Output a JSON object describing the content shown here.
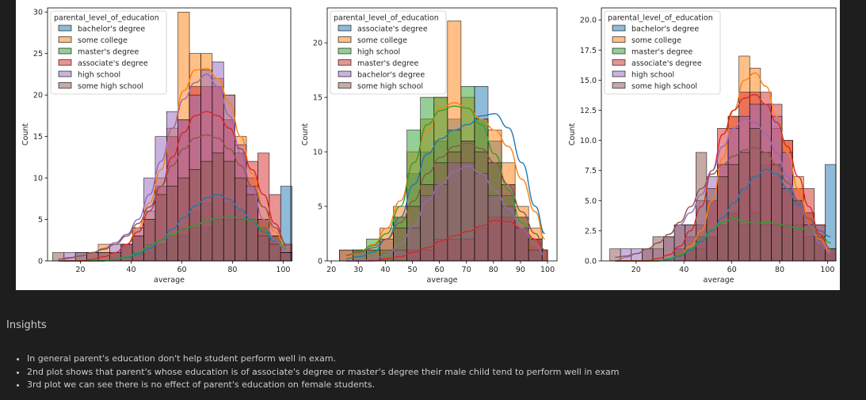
{
  "insights": {
    "heading": "Insights",
    "bullets": [
      "In general parent's education don't help student perform well in exam.",
      "2nd plot shows that parent's whose education is of associate's degree or master's degree their male child tend to perform well in exam",
      "3rd plot we can see there is no effect of parent's education on female students."
    ]
  },
  "colors": {
    "blue": "#1f77b4",
    "orange": "#ff7f0e",
    "green": "#2ca02c",
    "red": "#d62728",
    "purple": "#9467bd",
    "brown": "#8c564b"
  },
  "chart_data": [
    {
      "type": "histogram",
      "title": "",
      "xlabel": "average",
      "ylabel": "Count",
      "xlim": [
        7,
        103
      ],
      "ylim": [
        0,
        30.5
      ],
      "xticks": [
        20,
        40,
        60,
        80,
        100
      ],
      "yticks": [
        0,
        5,
        10,
        15,
        20,
        25,
        30
      ],
      "ytick_labels": [
        "0",
        "5",
        "10",
        "15",
        "20",
        "25",
        "30"
      ],
      "legend_title": "parental_level_of_education",
      "legend_position": "top-left",
      "bin_edges": [
        9,
        13.5,
        18,
        22.5,
        27,
        31.5,
        36,
        40.5,
        45,
        49.5,
        54,
        58.5,
        63,
        67.5,
        72,
        76.5,
        81,
        85.5,
        90,
        94.5,
        99,
        103.5
      ],
      "series": [
        {
          "name": "bachelor's degree",
          "color": "blue",
          "counts": [
            0,
            0,
            0,
            0,
            0,
            0,
            0,
            0,
            1,
            2,
            3,
            4,
            6,
            7,
            8,
            7,
            6,
            5,
            4,
            3,
            9
          ],
          "kde": [
            0,
            0,
            0,
            0,
            0,
            0.2,
            0.4,
            0.8,
            1.5,
            2.5,
            3.8,
            5.2,
            6.6,
            7.6,
            8.0,
            7.4,
            6.2,
            4.8,
            3.5,
            2.4,
            1.8
          ]
        },
        {
          "name": "some college",
          "color": "orange",
          "counts": [
            0,
            0,
            0,
            1,
            2,
            1,
            2,
            4,
            6,
            10,
            16,
            30,
            25,
            25,
            22,
            20,
            15,
            10,
            5,
            3,
            1
          ],
          "kde": [
            0,
            0,
            0,
            0.2,
            0.5,
            1,
            2,
            4,
            7,
            11,
            16,
            20.5,
            23,
            23.2,
            22,
            19,
            15,
            10.5,
            6.5,
            3.5,
            1.5
          ]
        },
        {
          "name": "master's degree",
          "color": "green",
          "counts": [
            0,
            0,
            0,
            0,
            0,
            0,
            0,
            1,
            2,
            2,
            3,
            3,
            4,
            4,
            5,
            5,
            5,
            5,
            3,
            2,
            1
          ],
          "kde": [
            0,
            0,
            0,
            0,
            0,
            0.2,
            0.5,
            1,
            1.8,
            2.5,
            3.2,
            3.8,
            4.3,
            4.8,
            5.2,
            5.3,
            5.2,
            4.8,
            3.8,
            2.6,
            1.5
          ]
        },
        {
          "name": "associate's degree",
          "color": "red",
          "counts": [
            0,
            0,
            0,
            0,
            0,
            1,
            2,
            3,
            5,
            9,
            15,
            17,
            21,
            21,
            21,
            17,
            13,
            12,
            13,
            8,
            2
          ],
          "kde": [
            0,
            0,
            0,
            0.2,
            0.5,
            1,
            2,
            3.5,
            6,
            9,
            12.5,
            15.5,
            17.5,
            18,
            17.5,
            16,
            13.5,
            11,
            8,
            4.5,
            2
          ]
        },
        {
          "name": "high school",
          "color": "purple",
          "counts": [
            0,
            1,
            1,
            1,
            1,
            2,
            2,
            4,
            10,
            15,
            18,
            17,
            20,
            23,
            24,
            20,
            14,
            9,
            3,
            2,
            1
          ],
          "kde": [
            0,
            0.3,
            0.6,
            1,
            1.5,
            2.2,
            3.2,
            5,
            8,
            12,
            16,
            19.5,
            21.5,
            22.5,
            21,
            17.5,
            13,
            8.5,
            5,
            2.5,
            1.2
          ]
        },
        {
          "name": "some high school",
          "color": "brown",
          "counts": [
            1,
            0,
            1,
            1,
            1,
            1,
            2,
            3,
            5,
            8,
            9,
            10,
            11,
            12,
            13,
            12,
            10,
            8,
            5,
            3,
            1
          ],
          "kde": [
            0.2,
            0.4,
            0.6,
            1,
            1.4,
            2,
            3,
            4.5,
            6.5,
            9,
            11.5,
            13.5,
            14.8,
            15.2,
            14.8,
            13.5,
            11.5,
            9,
            6.5,
            4,
            2
          ]
        }
      ]
    },
    {
      "type": "histogram",
      "title": "",
      "xlabel": "average",
      "ylabel": "Count",
      "xlim": [
        18.5,
        103.5
      ],
      "ylim": [
        0,
        23.2
      ],
      "xticks": [
        20,
        30,
        40,
        50,
        60,
        70,
        80,
        90,
        100
      ],
      "yticks": [
        0,
        5,
        10,
        15,
        20
      ],
      "ytick_labels": [
        "0",
        "5",
        "10",
        "15",
        "20"
      ],
      "legend_title": "parental_level_of_education",
      "legend_position": "top-left",
      "bin_edges": [
        23,
        28,
        33,
        38,
        43,
        48,
        53,
        58,
        63,
        68,
        73,
        78,
        83,
        88,
        93,
        98,
        100
      ],
      "series": [
        {
          "name": "associate's degree",
          "color": "blue",
          "counts": [
            0,
            0,
            0,
            1,
            4,
            8,
            10,
            11,
            13,
            11,
            16,
            11,
            7,
            4,
            2,
            1
          ],
          "kde": [
            0.2,
            0.4,
            0.8,
            2,
            4,
            7,
            9.8,
            11.2,
            12,
            12.5,
            13.3,
            13.5,
            12.2,
            9,
            5,
            2.5
          ]
        },
        {
          "name": "some college",
          "color": "orange",
          "counts": [
            1,
            1,
            1,
            3,
            5,
            10,
            13,
            15,
            22,
            15,
            13,
            12,
            9,
            5,
            3,
            1
          ],
          "kde": [
            0.4,
            0.8,
            1.5,
            3,
            5.5,
            9,
            12,
            14,
            14.5,
            14,
            13,
            12,
            10.5,
            7.5,
            4.5,
            2
          ]
        },
        {
          "name": "high school",
          "color": "green",
          "counts": [
            0,
            1,
            2,
            1,
            4,
            12,
            15,
            15,
            12,
            16,
            13,
            9,
            6,
            3,
            1,
            0
          ],
          "kde": [
            0.5,
            0.9,
            1.4,
            2.5,
            5,
            9,
            12.5,
            13.8,
            14.2,
            14,
            12.5,
            9.8,
            6.5,
            3.5,
            1.5,
            0.5
          ]
        },
        {
          "name": "master's degree",
          "color": "red",
          "counts": [
            0,
            0,
            0,
            0,
            0,
            1,
            1,
            2,
            2,
            2,
            3,
            4,
            4,
            3,
            2,
            1
          ],
          "kde": [
            0,
            0,
            0,
            0.2,
            0.4,
            0.8,
            1.2,
            1.8,
            2.3,
            2.7,
            3.2,
            3.7,
            3.6,
            3,
            2,
            1
          ]
        },
        {
          "name": "bachelor's degree",
          "color": "purple",
          "counts": [
            0,
            0,
            0,
            0,
            1,
            3,
            6,
            7,
            9,
            9,
            8,
            6,
            5,
            3,
            1,
            0
          ],
          "kde": [
            0,
            0,
            0.2,
            0.5,
            1.5,
            3.2,
            5.5,
            7,
            8.2,
            8.7,
            8,
            6.5,
            4.8,
            3,
            1.5,
            0.5
          ]
        },
        {
          "name": "some high school",
          "color": "brown",
          "counts": [
            1,
            1,
            1,
            2,
            3,
            5,
            7,
            9,
            10,
            11,
            10,
            9,
            7,
            4,
            2,
            1
          ],
          "kde": [
            0.5,
            0.8,
            1.2,
            2,
            3.5,
            5.5,
            8,
            9.5,
            10.5,
            10.8,
            10.3,
            9,
            7,
            4.5,
            2.5,
            1
          ]
        }
      ]
    },
    {
      "type": "histogram",
      "title": "",
      "xlabel": "average",
      "ylabel": "Count",
      "xlim": [
        5.5,
        103.5
      ],
      "ylim": [
        0,
        21
      ],
      "xticks": [
        20,
        40,
        60,
        80,
        100
      ],
      "yticks": [
        0,
        2.5,
        5,
        7.5,
        10,
        12.5,
        15,
        17.5,
        20
      ],
      "ytick_labels": [
        "0.0",
        "2.5",
        "5.0",
        "7.5",
        "10.0",
        "12.5",
        "15.0",
        "17.5",
        "20.0"
      ],
      "legend_title": "parental_level_of_education",
      "legend_position": "top-left",
      "bin_edges": [
        9,
        13.5,
        18,
        22.5,
        27,
        31.5,
        36,
        40.5,
        45,
        49.5,
        54,
        58.5,
        63,
        67.5,
        72,
        76.5,
        81,
        85.5,
        90,
        94.5,
        99,
        103.5
      ],
      "series": [
        {
          "name": "bachelor's degree",
          "color": "blue",
          "counts": [
            0,
            0,
            0,
            0,
            0,
            0,
            0,
            1,
            2,
            2,
            3,
            4,
            6,
            7,
            8,
            7,
            6,
            5,
            4,
            3,
            8
          ],
          "kde": [
            0,
            0,
            0,
            0,
            0,
            0.1,
            0.4,
            0.9,
            1.6,
            2.5,
            3.6,
            4.8,
            6,
            7,
            7.6,
            7.2,
            6,
            4.7,
            3.5,
            2.5,
            2
          ]
        },
        {
          "name": "some college",
          "color": "orange",
          "counts": [
            0,
            0,
            0,
            0,
            0,
            0,
            1,
            1,
            2,
            5,
            8,
            12,
            17,
            16,
            13,
            11,
            10,
            7,
            4,
            2,
            1
          ],
          "kde": [
            0,
            0,
            0,
            0,
            0,
            0.2,
            0.5,
            1.2,
            2.5,
            5,
            8.5,
            12.5,
            15,
            15.6,
            14.5,
            12,
            9,
            6,
            3.5,
            1.8,
            0.8
          ]
        },
        {
          "name": "master's degree",
          "color": "green",
          "counts": [
            0,
            0,
            0,
            0,
            0,
            0,
            0,
            1,
            1,
            2,
            3,
            4,
            3,
            4,
            3,
            3,
            3,
            3,
            2,
            2,
            1
          ],
          "kde": [
            0,
            0,
            0,
            0,
            0,
            0.2,
            0.5,
            1,
            1.8,
            2.6,
            3.2,
            3.5,
            3.3,
            3.1,
            3.2,
            3.1,
            2.9,
            2.7,
            2.6,
            2.2,
            1.5
          ]
        },
        {
          "name": "associate's degree",
          "color": "red",
          "counts": [
            0,
            0,
            0,
            0,
            0,
            0,
            1,
            2,
            3,
            5,
            11,
            12,
            14,
            14,
            14,
            13,
            10,
            6,
            6,
            3,
            1
          ],
          "kde": [
            0,
            0,
            0,
            0,
            0.2,
            0.5,
            1.2,
            2.5,
            4.5,
            7.5,
            10.5,
            12.5,
            13.5,
            13.8,
            13,
            11.5,
            9.5,
            7,
            4.5,
            2.2,
            1
          ]
        },
        {
          "name": "high school",
          "color": "purple",
          "counts": [
            0,
            1,
            1,
            1,
            1,
            2,
            3,
            3,
            5,
            7,
            8,
            11,
            12,
            13,
            13,
            12,
            9,
            5,
            3,
            2,
            1
          ],
          "kde": [
            0,
            0.3,
            0.6,
            1,
            1.5,
            2.2,
            3,
            4,
            5.5,
            7.5,
            9.5,
            11,
            11.8,
            11.5,
            10.5,
            9,
            7,
            5,
            3,
            1.5,
            0.6
          ]
        },
        {
          "name": "some high school",
          "color": "brown",
          "counts": [
            1,
            0,
            0,
            1,
            2,
            2,
            3,
            3,
            9,
            6,
            7,
            8,
            9,
            11,
            9,
            8,
            6,
            5,
            3,
            2,
            1
          ],
          "kde": [
            0.3,
            0.4,
            0.6,
            1,
            1.5,
            2.2,
            3.2,
            4.5,
            6,
            7.2,
            8,
            8.7,
            9.2,
            9.4,
            9,
            8,
            6.5,
            5,
            3.5,
            2,
            1
          ]
        }
      ]
    }
  ]
}
